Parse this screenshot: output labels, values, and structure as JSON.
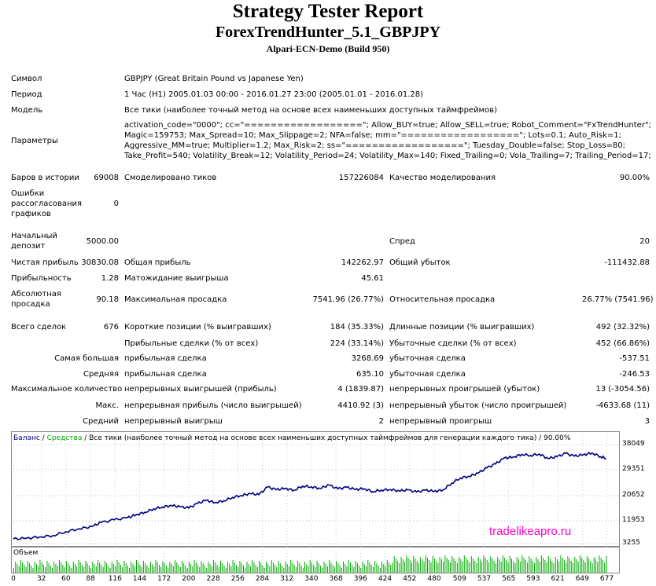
{
  "header": {
    "title": "Strategy Tester Report",
    "subtitle": "ForexTrendHunter_5.1_GBPJPY",
    "server": "Alpari-ECN-Demo (Build 950)"
  },
  "info": {
    "symbol_label": "Символ",
    "symbol_value": "GBPJPY (Great Britain Pound vs Japanese Yen)",
    "period_label": "Период",
    "period_value": "1 Час (H1) 2005.01.03 00:00 - 2016.01.27 23:00 (2005.01.01 - 2016.01.28)",
    "model_label": "Модель",
    "model_value": "Все тики (наиболее точный метод на основе всех наименьших доступных таймфреймов)",
    "params_label": "Параметры",
    "params_lines": [
      "activation_code=\"0000\"; cc=\"==================\"; Allow_BUY=true; Allow_SELL=true; Robot_Comment=\"FxTrendHunter\";",
      "Magic=159753; Max_Spread=10; Max_Slippage=2; NFA=false; mm=\"==================\"; Lots=0.1; Auto_Risk=1;",
      "Aggressive_MM=true; Multiplier=1.2; Max_Risk=2; ss=\"==================\"; Tuesday_Double=false; Stop_Loss=80;",
      "Take_Profit=540; Volatility_Break=12; Volatility_Period=24; Volatility_Max=140; Fixed_Trailing=0; Vola_Trailing=7; Trailing_Period=17;"
    ]
  },
  "stats": {
    "bars_label": "Баров в истории",
    "bars_value": "69008",
    "ticks_label": "Смоделировано тиков",
    "ticks_value": "157226084",
    "quality_label": "Качество моделирования",
    "quality_value": "90.00%",
    "errors_label": "Ошибки рассогласования графиков",
    "errors_value": "0",
    "deposit_label": "Начальный депозит",
    "deposit_value": "5000.00",
    "spread_label": "Спред",
    "spread_value": "20",
    "net_label": "Чистая прибыль",
    "net_value": "30830.08",
    "gross_profit_label": "Общая прибыль",
    "gross_profit_value": "142262.97",
    "gross_loss_label": "Общий убыток",
    "gross_loss_value": "-111432.88",
    "pf_label": "Прибыльность",
    "pf_value": "1.28",
    "expect_label": "Матожидание выигрыша",
    "expect_value": "45.61",
    "abs_dd_label": "Абсолютная просадка",
    "abs_dd_value": "90.18",
    "max_dd_label": "Максимальная просадка",
    "max_dd_value": "7541.96 (26.77%)",
    "rel_dd_label": "Относительная просадка",
    "rel_dd_value": "26.77% (7541.96)",
    "total_label": "Всего сделок",
    "total_value": "676",
    "short_label": "Короткие позиции (% выигравших)",
    "short_value": "184 (35.33%)",
    "long_label": "Длинные позиции (% выигравших)",
    "long_value": "492 (32.32%)",
    "win_trades_label": "Прибыльные сделки (% от всех)",
    "win_trades_value": "224 (33.14%)",
    "loss_trades_label": "Убыточные сделки (% от всех)",
    "loss_trades_value": "452 (66.86%)",
    "largest_label": "Самая большая",
    "largest_win_label": "прибыльная сделка",
    "largest_win_value": "3268.69",
    "largest_loss_label": "убыточная сделка",
    "largest_loss_value": "-537.51",
    "average_label": "Средняя",
    "avg_win_label": "прибыльная сделка",
    "avg_win_value": "635.10",
    "avg_loss_label": "убыточная сделка",
    "avg_loss_value": "-246.53",
    "max_count_label": "Максимальное количество",
    "consec_wins_label": "непрерывных выигрышей (прибыль)",
    "consec_wins_value": "4 (1839.87)",
    "consec_losses_label": "непрерывных проигрышей (убыток)",
    "consec_losses_value": "13 (-3054.56)",
    "max_label": "Макс.",
    "consec_profit_label": "непрерывная прибыль (число выигрышей)",
    "consec_profit_value": "4410.92 (3)",
    "consec_loss_label": "непрерывный убыток (число проигрышей)",
    "consec_loss_value": "-4633.68 (11)",
    "avg2_label": "Средний",
    "avg_consec_wins_label": "непрерывный выигрыш",
    "avg_consec_wins_value": "2",
    "avg_consec_losses_label": "непрерывный проигрыш",
    "avg_consec_losses_value": "3"
  },
  "chart_data": {
    "type": "line",
    "legend_balance": "Баланс",
    "legend_sep": " / ",
    "legend_equity": "Средства",
    "legend_rest": " / Все тики (наиболее точный метод на основе всех наименьших доступных таймфреймов для генерации каждого тика) / 90.00%",
    "volume_label": "Объем",
    "watermark": "tradelikeapro.ru",
    "yticks": [
      "38049",
      "29351",
      "20652",
      "11953",
      "3255"
    ],
    "ytick_values": [
      38049,
      29351,
      20652,
      11953,
      3255
    ],
    "xticks": [
      "0",
      "32",
      "60",
      "88",
      "116",
      "144",
      "172",
      "200",
      "228",
      "256",
      "284",
      "312",
      "340",
      "368",
      "396",
      "424",
      "452",
      "480",
      "509",
      "537",
      "565",
      "593",
      "621",
      "649",
      "677"
    ],
    "xlim": [
      0,
      690
    ],
    "ylim": [
      3255,
      41000
    ],
    "colors": {
      "balance": "#000080",
      "equity": "#00aa00",
      "volume": "#00aa00"
    },
    "series": [
      {
        "name": "Баланс",
        "x": [
          0,
          15,
          30,
          45,
          60,
          75,
          90,
          100,
          115,
          130,
          140,
          150,
          160,
          170,
          180,
          190,
          200,
          210,
          220,
          230,
          240,
          250,
          260,
          270,
          280,
          290,
          300,
          310,
          320,
          330,
          340,
          350,
          360,
          370,
          380,
          390,
          400,
          410,
          420,
          430,
          440,
          450,
          460,
          470,
          480,
          490,
          500,
          510,
          520,
          530,
          540,
          550,
          560,
          570,
          580,
          590,
          600,
          610,
          620,
          630,
          640,
          650,
          660,
          670,
          676
        ],
        "y": [
          5000,
          5300,
          5800,
          6300,
          7800,
          8900,
          9800,
          11300,
          12300,
          13100,
          14200,
          15200,
          16500,
          17200,
          17800,
          17300,
          16800,
          18500,
          19800,
          18900,
          19600,
          20900,
          21600,
          22300,
          21900,
          24800,
          23800,
          24300,
          23600,
          25200,
          24900,
          24300,
          25600,
          24100,
          24700,
          23900,
          24200,
          23100,
          23700,
          23900,
          23300,
          23700,
          22900,
          23600,
          23200,
          23700,
          26300,
          28300,
          28900,
          30100,
          32100,
          33600,
          35900,
          36200,
          37300,
          36900,
          37400,
          35700,
          36400,
          37600,
          36600,
          37100,
          37800,
          36400,
          35830
        ]
      }
    ]
  }
}
